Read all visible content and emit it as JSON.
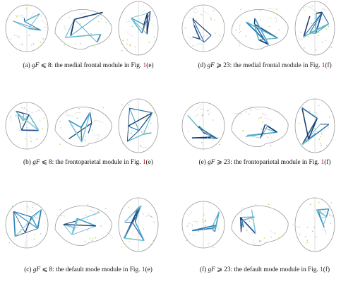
{
  "panels": [
    {
      "label": "(a)",
      "variable": "gF",
      "relation": "⩽ 8",
      "text": ": the medial frontal module in Fig. ",
      "ref": "1",
      "ref_suffix": "(e)"
    },
    {
      "label": "(b)",
      "variable": "gF",
      "relation": "⩽ 8",
      "text": ": the frontoparietal module in Fig. ",
      "ref": "1",
      "ref_suffix": "(e)"
    },
    {
      "label": "(c)",
      "variable": "gF",
      "relation": "⩽ 8",
      "text": ": the default mode module in Fig. ",
      "ref": "1",
      "ref_suffix": "(e)"
    },
    {
      "label": "(d)",
      "variable": "gF",
      "relation": "⩾ 23",
      "text": ": the medial frontal module in Fig. ",
      "ref": "1",
      "ref_suffix": "(f)"
    },
    {
      "label": "(e)",
      "variable": "gF",
      "relation": "⩾ 23",
      "text": ": the frontoparietal module in Fig. ",
      "ref": "1",
      "ref_suffix": "(f)"
    },
    {
      "label": "(f)",
      "variable": "gF",
      "relation": "⩾ 23",
      "text": ": the default mode module in Fig. ",
      "ref": "1",
      "ref_suffix": "(f)"
    }
  ]
}
